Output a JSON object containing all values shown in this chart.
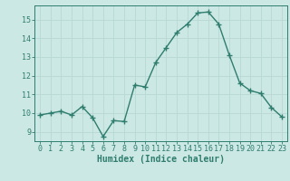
{
  "x": [
    0,
    1,
    2,
    3,
    4,
    5,
    6,
    7,
    8,
    9,
    10,
    11,
    12,
    13,
    14,
    15,
    16,
    17,
    18,
    19,
    20,
    21,
    22,
    23
  ],
  "y": [
    9.9,
    10.0,
    10.1,
    9.9,
    10.35,
    9.75,
    8.75,
    9.6,
    9.55,
    11.5,
    11.4,
    12.7,
    13.5,
    14.3,
    14.75,
    15.35,
    15.4,
    14.75,
    13.1,
    11.6,
    11.2,
    11.05,
    10.3,
    9.8
  ],
  "line_color": "#2e7d6e",
  "marker": "+",
  "marker_size": 4,
  "bg_color": "#cce8e4",
  "grid_color": "#b8d8d4",
  "xlabel": "Humidex (Indice chaleur)",
  "xlim": [
    -0.5,
    23.5
  ],
  "ylim": [
    8.5,
    15.75
  ],
  "yticks": [
    9,
    10,
    11,
    12,
    13,
    14,
    15
  ],
  "xticks": [
    0,
    1,
    2,
    3,
    4,
    5,
    6,
    7,
    8,
    9,
    10,
    11,
    12,
    13,
    14,
    15,
    16,
    17,
    18,
    19,
    20,
    21,
    22,
    23
  ],
  "line_width": 1.0,
  "tick_fontsize": 6.0,
  "xlabel_fontsize": 7.0
}
